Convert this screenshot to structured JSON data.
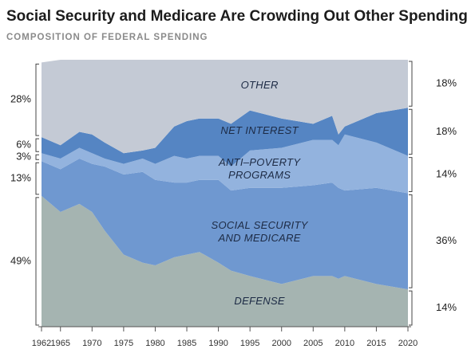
{
  "chart_data": {
    "type": "stacked-area",
    "title": "Social Security and Medicare Are Crowding Out Other Spending",
    "subtitle": "COMPOSITION OF FEDERAL SPENDING",
    "x": [
      1962,
      1965,
      1968,
      1970,
      1972,
      1975,
      1978,
      1980,
      1983,
      1985,
      1987,
      1990,
      1992,
      1995,
      2000,
      2005,
      2008,
      2009,
      2010,
      2015,
      2020
    ],
    "xlim": [
      1962,
      2020
    ],
    "xticks": [
      1962,
      1965,
      1970,
      1975,
      1980,
      1985,
      1990,
      1995,
      2000,
      2005,
      2010,
      2015,
      2020
    ],
    "ylim": [
      0,
      100
    ],
    "series": [
      {
        "name": "DEFENSE",
        "color": "#a5b4b1",
        "values": [
          49,
          43,
          46,
          43,
          36,
          27,
          24,
          23,
          26,
          27,
          28,
          24,
          21,
          19,
          16,
          19,
          19,
          18,
          19,
          16,
          14
        ],
        "value_labels": [
          "49%",
          null,
          null,
          null,
          null,
          null,
          null,
          null,
          null,
          null,
          null,
          null,
          null,
          null,
          null,
          null,
          null,
          null,
          null,
          null,
          "14%"
        ]
      },
      {
        "name": "SOCIAL SECURITY\nAND MEDICARE",
        "color": "#6f98d0",
        "values": [
          13,
          16,
          17,
          18,
          24,
          30,
          34,
          32,
          28,
          27,
          27,
          31,
          30,
          33,
          36,
          34,
          35,
          34,
          32,
          36,
          36
        ],
        "value_labels": [
          "13%",
          null,
          null,
          null,
          null,
          null,
          null,
          null,
          null,
          null,
          null,
          null,
          null,
          null,
          null,
          null,
          null,
          null,
          null,
          null,
          "36%"
        ]
      },
      {
        "name": "ANTI–POVERTY\nPROGRAMS",
        "color": "#93b3de",
        "values": [
          3,
          4,
          4,
          4,
          3,
          4,
          5,
          6,
          10,
          9,
          9,
          9,
          9,
          14,
          15,
          17,
          16,
          16,
          21,
          17,
          14
        ],
        "value_labels": [
          "3%",
          null,
          null,
          null,
          null,
          null,
          null,
          null,
          null,
          null,
          null,
          null,
          null,
          null,
          null,
          null,
          null,
          null,
          null,
          null,
          "14%"
        ]
      },
      {
        "name": "NET INTEREST",
        "color": "#5585c3",
        "values": [
          6,
          5,
          6,
          7,
          6,
          4,
          3,
          6,
          11,
          14,
          14,
          14,
          16,
          15,
          11,
          6,
          9,
          4,
          3,
          11,
          18
        ],
        "value_labels": [
          "6%",
          null,
          null,
          null,
          null,
          null,
          null,
          null,
          null,
          null,
          null,
          null,
          null,
          null,
          null,
          null,
          null,
          null,
          null,
          null,
          "18%"
        ]
      },
      {
        "name": "OTHER",
        "color": "#c4cad5",
        "values": [
          28,
          32,
          27,
          28,
          31,
          35,
          34,
          33,
          25,
          23,
          22,
          22,
          24,
          19,
          22,
          24,
          21,
          28,
          25,
          20,
          18
        ],
        "value_labels": [
          "28%",
          null,
          null,
          null,
          null,
          null,
          null,
          null,
          null,
          null,
          null,
          null,
          null,
          null,
          null,
          null,
          null,
          null,
          null,
          null,
          "18%"
        ]
      }
    ]
  }
}
